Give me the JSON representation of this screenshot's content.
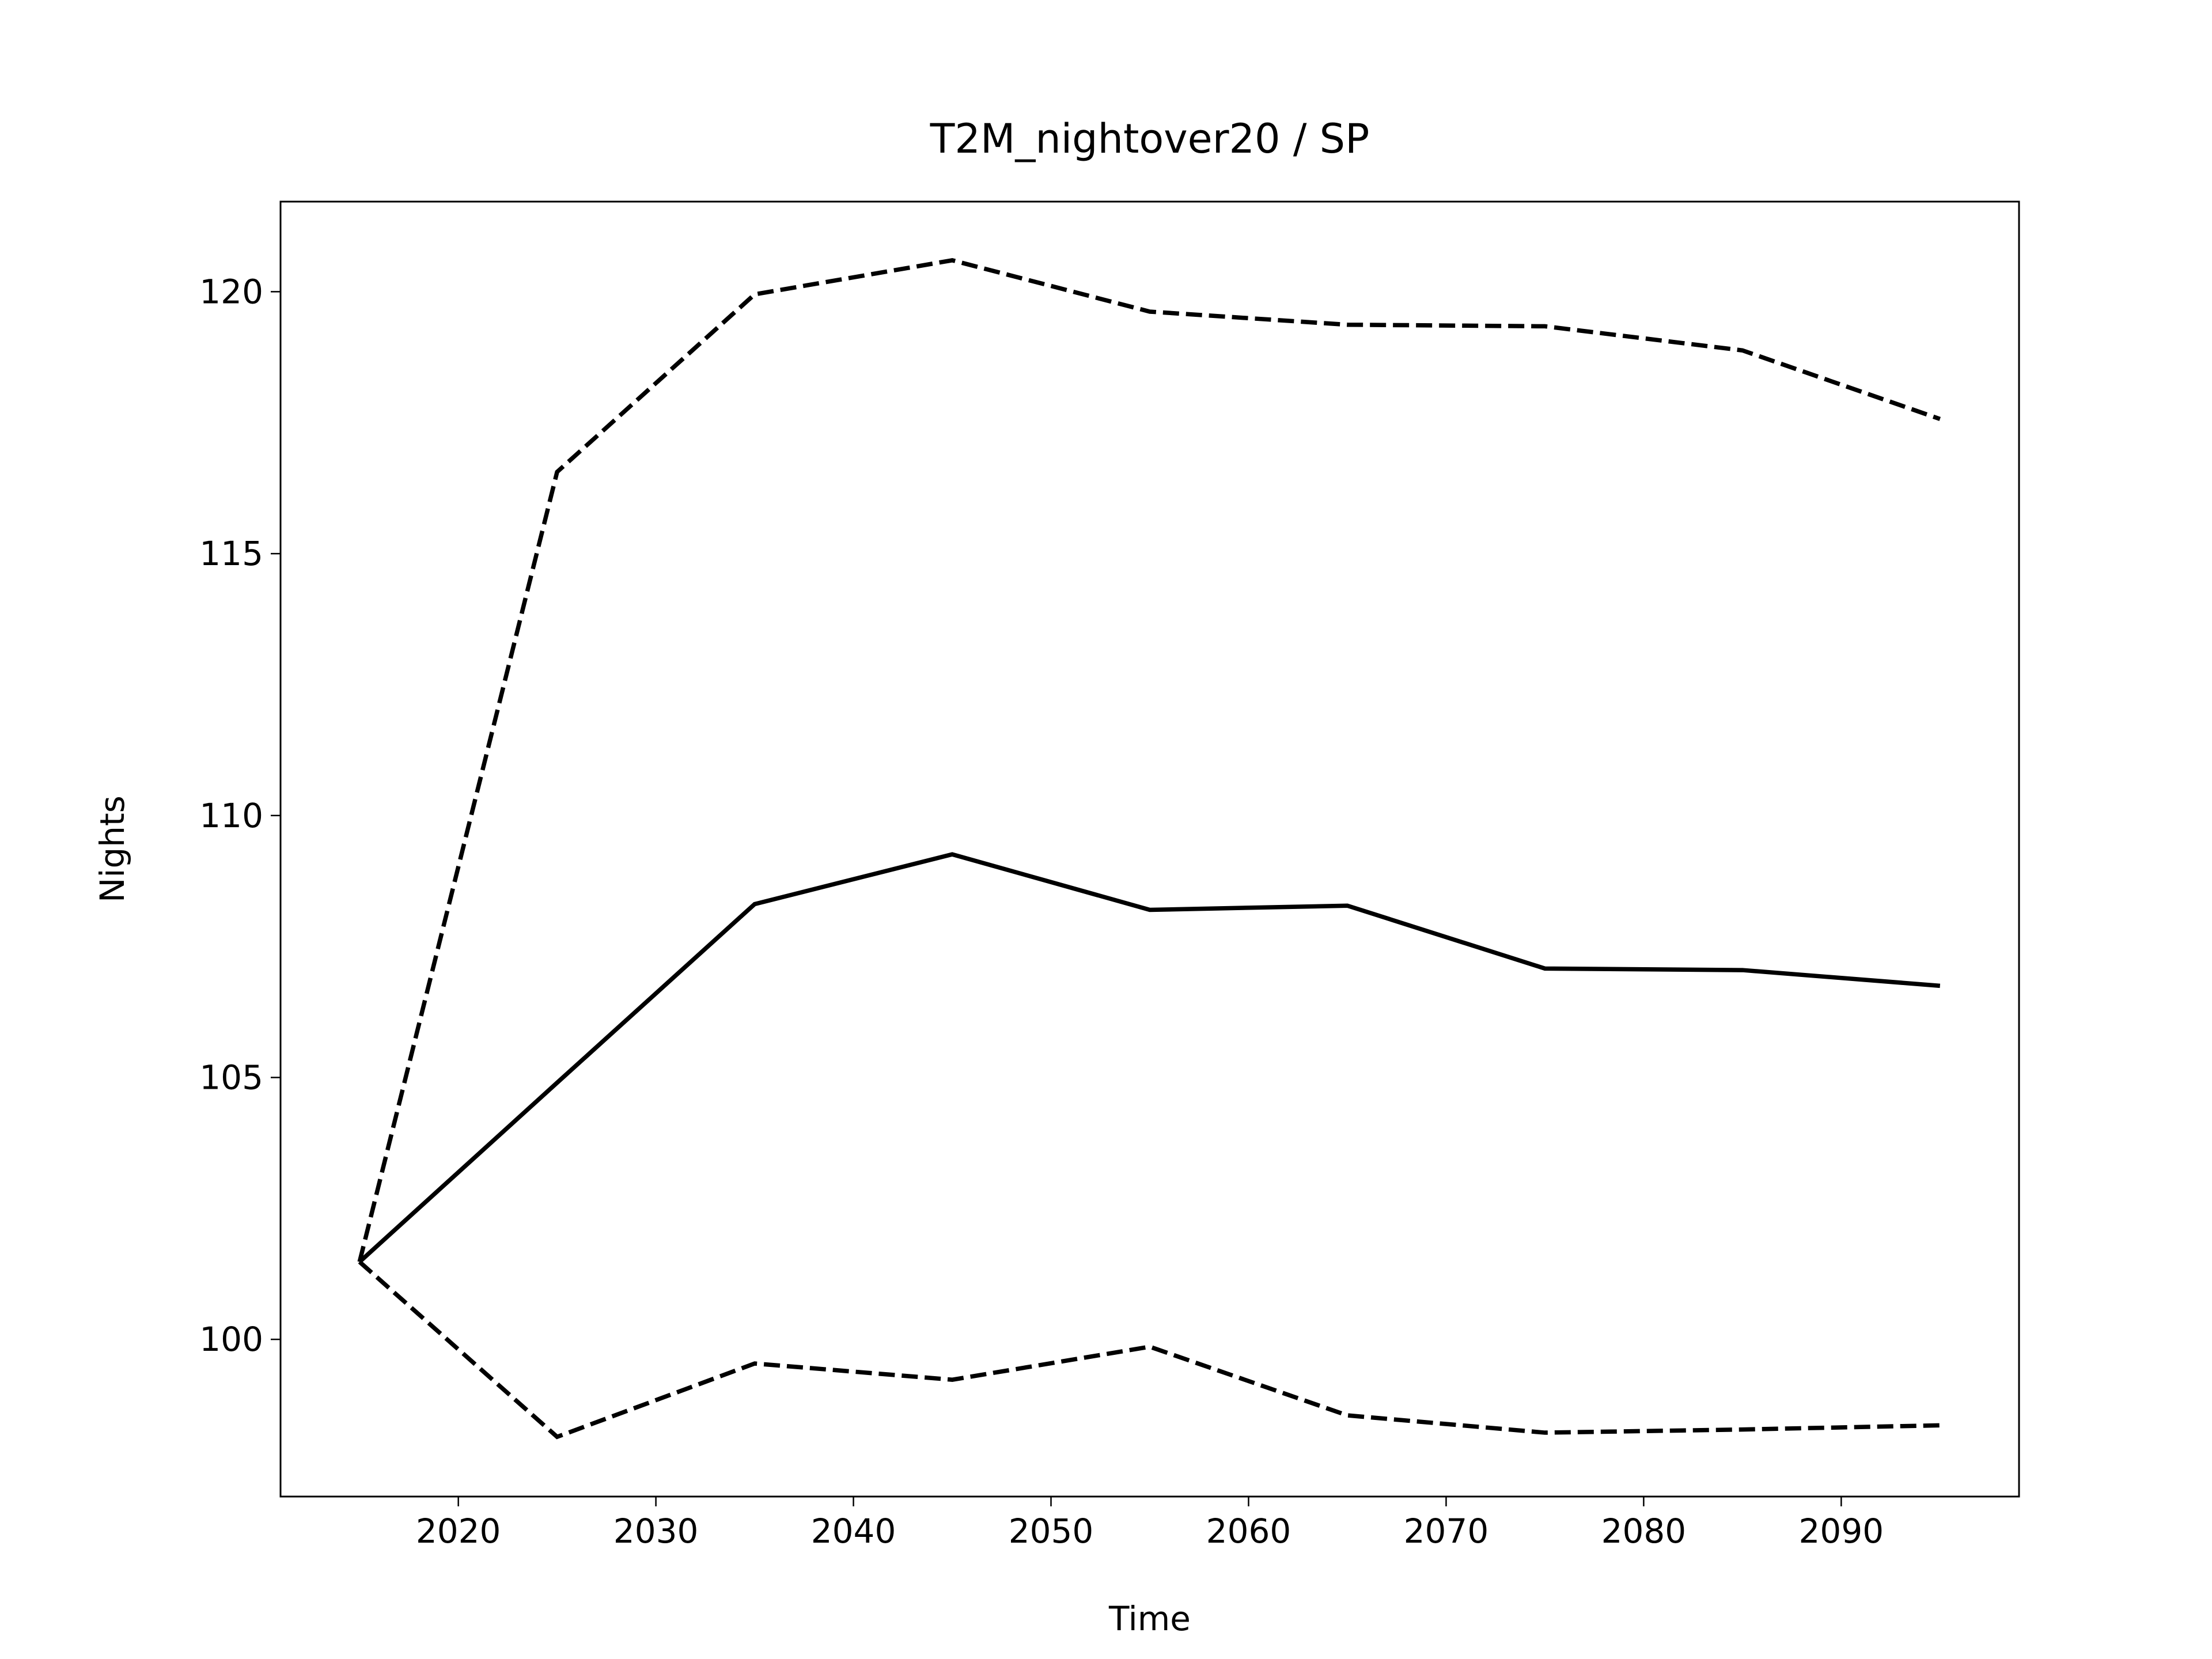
{
  "chart_data": {
    "type": "line",
    "title": "T2M_nightover20 / SP",
    "xlabel": "Time",
    "ylabel": "Nights",
    "x": [
      2015,
      2025,
      2035,
      2045,
      2055,
      2065,
      2075,
      2085,
      2095
    ],
    "series": [
      {
        "color": "#000000",
        "linestyle": "solid",
        "values": [
          101.48,
          104.9,
          108.31,
          109.26,
          108.2,
          108.28,
          107.08,
          107.05,
          106.75
        ]
      },
      {
        "color": "#000000",
        "linestyle": "dashed",
        "values": [
          101.48,
          116.56,
          119.95,
          120.6,
          119.62,
          119.37,
          119.34,
          118.88,
          117.57
        ]
      },
      {
        "color": "#000000",
        "linestyle": "dashed",
        "values": [
          101.48,
          98.14,
          99.54,
          99.23,
          99.86,
          98.55,
          98.22,
          98.28,
          98.36
        ]
      }
    ],
    "xlim": [
      2011,
      2099
    ],
    "xticks": [
      2020,
      2030,
      2040,
      2050,
      2060,
      2070,
      2080,
      2090
    ],
    "ylim": [
      97.0,
      121.72
    ],
    "yticks": [
      100,
      105,
      110,
      115,
      120
    ],
    "grid": false
  }
}
